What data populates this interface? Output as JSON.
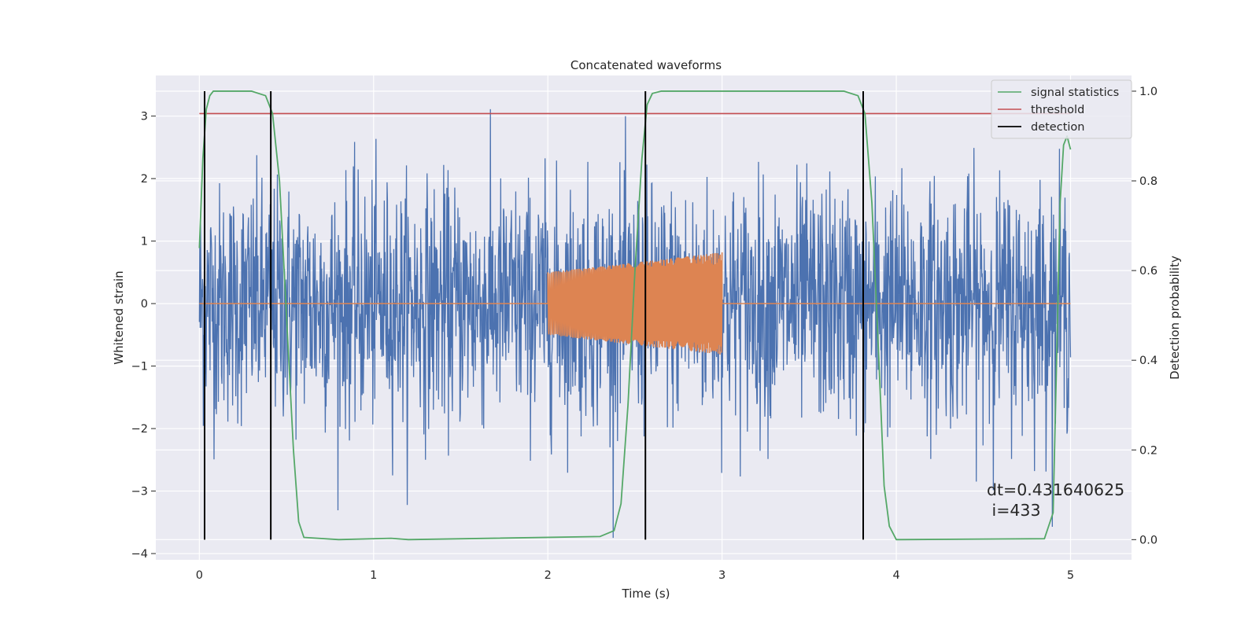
{
  "chart_data": {
    "type": "line",
    "title": "Concatenated waveforms",
    "xlabel": "Time (s)",
    "ylabel": "Whitened strain",
    "y2label": "Detection probability",
    "xlim": [
      -0.25,
      5.35
    ],
    "ylim": [
      -4.1,
      3.65
    ],
    "y2lim": [
      -0.045,
      1.035
    ],
    "x_ticks": [
      "0",
      "1",
      "2",
      "3",
      "4",
      "5"
    ],
    "y_ticks": [
      "3",
      "2",
      "1",
      "0",
      "−1",
      "−2",
      "−3",
      "−4"
    ],
    "y2_ticks": [
      "1.0",
      "0.8",
      "0.6",
      "0.4",
      "0.2",
      "0.0"
    ],
    "grid": true,
    "legend_position": "top-right",
    "colors": {
      "noise": "#4c72b0",
      "injection": "#dd8452",
      "statistics": "#55a868",
      "threshold": "#c44e52",
      "detection": "#000000",
      "background": "#eaeaf2"
    },
    "series": [
      {
        "name": "",
        "description_key": "noise",
        "x_range": [
          0,
          5
        ],
        "amplitude_typical": 2.4,
        "peak_max": 3.45,
        "peak_min": -3.75
      },
      {
        "name": "",
        "description_key": "injection",
        "x_range": [
          2.0,
          3.0
        ],
        "envelope_start": 0.5,
        "envelope_end": 0.82
      },
      {
        "name": "signal statistics",
        "x": [
          0,
          0.02,
          0.04,
          0.06,
          0.08,
          0.1,
          0.3,
          0.38,
          0.42,
          0.46,
          0.5,
          0.54,
          0.57,
          0.6,
          0.8,
          1.1,
          1.2,
          2.3,
          2.38,
          2.42,
          2.46,
          2.5,
          2.54,
          2.57,
          2.6,
          2.65,
          3.7,
          3.78,
          3.82,
          3.86,
          3.9,
          3.93,
          3.96,
          4.0,
          4.85,
          4.9,
          4.92,
          4.94,
          4.96,
          4.98,
          5.0
        ],
        "y": [
          0.65,
          0.85,
          0.96,
          0.99,
          1.0,
          1.0,
          1.0,
          0.99,
          0.95,
          0.8,
          0.5,
          0.2,
          0.04,
          0.005,
          0.0,
          0.003,
          0.0,
          0.007,
          0.02,
          0.08,
          0.3,
          0.6,
          0.85,
          0.97,
          0.995,
          1.0,
          1.0,
          0.99,
          0.95,
          0.75,
          0.4,
          0.12,
          0.03,
          0.0,
          0.002,
          0.06,
          0.4,
          0.75,
          0.88,
          0.9,
          0.87
        ]
      },
      {
        "name": "threshold",
        "y": 0.95
      },
      {
        "name": "detection",
        "x": [
          0.03,
          0.41,
          2.56,
          3.81
        ]
      }
    ],
    "annotation": "dt=0.431640625\n i=433"
  }
}
